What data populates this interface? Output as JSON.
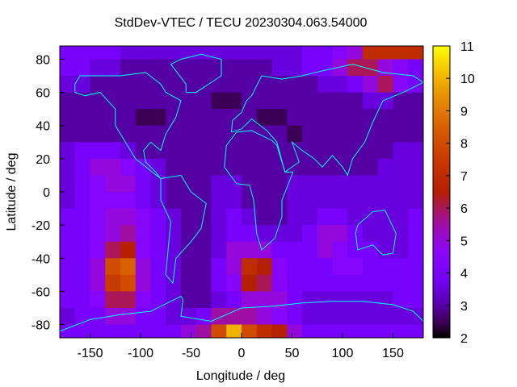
{
  "chart_data": {
    "type": "heatmap",
    "title": "StdDev-VTEC / TECU 20230304.063.54000",
    "xlabel": "Longitude / deg",
    "ylabel": "Latitude / deg",
    "xlim": [
      -180,
      180
    ],
    "ylim": [
      -88,
      88
    ],
    "xticks": [
      "-150",
      "-100",
      "-50",
      "0",
      "50",
      "100",
      "150"
    ],
    "xtick_values": [
      -150,
      -100,
      -50,
      0,
      50,
      100,
      150
    ],
    "yticks": [
      "80",
      "60",
      "40",
      "20",
      "0",
      "-20",
      "-40",
      "-60",
      "-80"
    ],
    "ytick_values": [
      80,
      60,
      40,
      20,
      0,
      -20,
      -40,
      -60,
      -80
    ],
    "colorbar": {
      "range": [
        2,
        11
      ],
      "ticks": [
        "11",
        "10",
        "9",
        "8",
        "7",
        "6",
        "5",
        "4",
        "3",
        "2"
      ],
      "tick_values": [
        11,
        10,
        9,
        8,
        7,
        6,
        5,
        4,
        3,
        2
      ],
      "palette": "black-purple-red-orange-yellow"
    },
    "overlay": "coastlines",
    "overlay_color": "#00ffff",
    "lon_centers": [
      -172.5,
      -157.5,
      -142.5,
      -127.5,
      -112.5,
      -97.5,
      -82.5,
      -67.5,
      -52.5,
      -37.5,
      -22.5,
      -7.5,
      7.5,
      22.5,
      37.5,
      52.5,
      67.5,
      82.5,
      97.5,
      112.5,
      127.5,
      142.5,
      157.5,
      172.5
    ],
    "lat_centers": [
      85,
      75,
      65,
      55,
      45,
      35,
      25,
      15,
      5,
      -5,
      -15,
      -25,
      -35,
      -45,
      -55,
      -65,
      -75,
      -85
    ],
    "values": [
      [
        4,
        4,
        4,
        4,
        3.5,
        3.5,
        3.5,
        3.5,
        3.5,
        3.5,
        3.5,
        3.5,
        3.5,
        3.5,
        3.5,
        3.5,
        4,
        4,
        4.5,
        5,
        7,
        7,
        7,
        7
      ],
      [
        4,
        4,
        3.5,
        3.5,
        3,
        3,
        3,
        3,
        3,
        3,
        3,
        3,
        3,
        3,
        3.5,
        3.5,
        4,
        4,
        5,
        6,
        6,
        5,
        4.5,
        4
      ],
      [
        3.5,
        3.5,
        3,
        3,
        3,
        3,
        3,
        3,
        3,
        3,
        3,
        3,
        3,
        3,
        3,
        3,
        3,
        3.5,
        3.5,
        4,
        5,
        6,
        4.5,
        4
      ],
      [
        3,
        3,
        3,
        3,
        3,
        3,
        3,
        3,
        3,
        3,
        2.5,
        2.5,
        3,
        3,
        3,
        3,
        3,
        3,
        3,
        3,
        3.5,
        3.5,
        3,
        3
      ],
      [
        3,
        3,
        3,
        3,
        3,
        2.5,
        2.5,
        3,
        3,
        3,
        3,
        3,
        3,
        2.5,
        2.5,
        3,
        3,
        3,
        3,
        3,
        3,
        3,
        3,
        3
      ],
      [
        3,
        3,
        3,
        3,
        3,
        3,
        3,
        3,
        3,
        3,
        3,
        3,
        3,
        3,
        3,
        2.5,
        3,
        3,
        3,
        3,
        3,
        3,
        3,
        3
      ],
      [
        3.5,
        4,
        4,
        4,
        3.5,
        3,
        3,
        3,
        3,
        3,
        3,
        3,
        3,
        3,
        3,
        3,
        3,
        3,
        3,
        3,
        3,
        3,
        3.5,
        3.5
      ],
      [
        3.5,
        4,
        5,
        5,
        4.5,
        4,
        3.5,
        3,
        3,
        3,
        3,
        3,
        3,
        3,
        3,
        3,
        3,
        3,
        3,
        3,
        3,
        3.5,
        3.5,
        3.5
      ],
      [
        3.5,
        4,
        4.5,
        5,
        5,
        4,
        3.5,
        3,
        3,
        3,
        3.5,
        3.5,
        3,
        3,
        3,
        3.5,
        3.5,
        3.5,
        3.5,
        3.5,
        3.5,
        3.5,
        3.5,
        3.5
      ],
      [
        3.5,
        4,
        4.5,
        4.5,
        4.5,
        4,
        3.5,
        3,
        3,
        3,
        3.5,
        3.5,
        3,
        3,
        3,
        3.5,
        3.5,
        3.5,
        3.5,
        3.5,
        3.5,
        3.5,
        3.5,
        3.5
      ],
      [
        4,
        4,
        4.5,
        5,
        5,
        4.5,
        4,
        3.5,
        3,
        3,
        3.5,
        4,
        3.5,
        3,
        3,
        3.5,
        3.5,
        4,
        4,
        3.5,
        3.5,
        3.5,
        3.5,
        4
      ],
      [
        4,
        4,
        4.5,
        5,
        5.5,
        4.5,
        4,
        3.5,
        3,
        3,
        3.5,
        4,
        4,
        3.5,
        3.5,
        3.5,
        4,
        5,
        5,
        4,
        3.5,
        3.5,
        3.5,
        4
      ],
      [
        4,
        4,
        4.5,
        6,
        6.5,
        4.5,
        4,
        3.5,
        3,
        3,
        3.5,
        5,
        5,
        5,
        4,
        4,
        4,
        5,
        4.5,
        4,
        4,
        3.5,
        3.5,
        4
      ],
      [
        4,
        4,
        5,
        8,
        8.5,
        5,
        4,
        3.5,
        3,
        3,
        4,
        5,
        7,
        6.5,
        4.5,
        4,
        4,
        4,
        4.5,
        4.5,
        4,
        4,
        4,
        4
      ],
      [
        4,
        4,
        5,
        7.5,
        8,
        5,
        4,
        3.5,
        3,
        3,
        4,
        4.5,
        6.5,
        6,
        4.5,
        4,
        4,
        4,
        4,
        4,
        4,
        4,
        4,
        4
      ],
      [
        4,
        4,
        4.5,
        6,
        6,
        4.5,
        4,
        3.5,
        3,
        3,
        3.5,
        4,
        5,
        5,
        5,
        4,
        3.5,
        3.5,
        3.5,
        3.5,
        3.5,
        3.5,
        4,
        4
      ],
      [
        3.5,
        4,
        4,
        5,
        5,
        4,
        4,
        3.5,
        3.5,
        4,
        5.5,
        5.5,
        5.5,
        5,
        4.5,
        4,
        3.5,
        3.5,
        3.5,
        3.5,
        3.5,
        3.5,
        3.5,
        3.5
      ],
      [
        4,
        4,
        4,
        4,
        4,
        4,
        4,
        4,
        5,
        5.5,
        8,
        10,
        8,
        7,
        6.5,
        5,
        4,
        4,
        4,
        4,
        4,
        4,
        4,
        4
      ]
    ]
  }
}
